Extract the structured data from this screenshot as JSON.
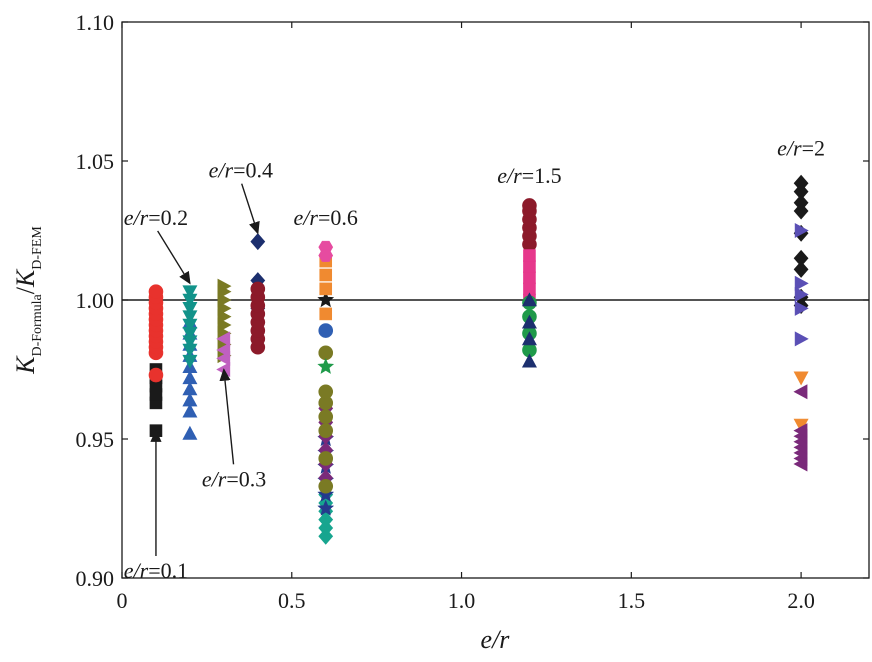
{
  "chart_data": {
    "type": "scatter",
    "xlabel_base": "e/r",
    "ylabel": {
      "num_italic": "K",
      "num_sub": "D-Formula",
      "slash": "/",
      "den_italic": "K",
      "den_sub": "D-FEM"
    },
    "xlim": [
      0,
      2.2
    ],
    "ylim": [
      0.9,
      1.1
    ],
    "x_ticks": [
      {
        "value": 0,
        "label": "0"
      },
      {
        "value": 0.5,
        "label": "0.5"
      },
      {
        "value": 1.0,
        "label": "1.0"
      },
      {
        "value": 1.5,
        "label": "1.5"
      },
      {
        "value": 2.0,
        "label": "2.0"
      }
    ],
    "y_ticks": [
      {
        "value": 0.9,
        "label": "0.90"
      },
      {
        "value": 0.95,
        "label": "0.95"
      },
      {
        "value": 1.0,
        "label": "1.00"
      },
      {
        "value": 1.05,
        "label": "1.05"
      },
      {
        "value": 1.1,
        "label": "1.10"
      }
    ],
    "reference_line": {
      "y": 1.0
    },
    "grid": false,
    "annotations": [
      {
        "text": "e/r=0.1",
        "italic": "e/r",
        "rest": "=0.1",
        "x": 0.1,
        "y": 0.9,
        "arrow_to": [
          0.1,
          0.953
        ]
      },
      {
        "text": "e/r=0.2",
        "italic": "e/r",
        "rest": "=0.2",
        "x": 0.1,
        "y": 1.027,
        "arrow_to": [
          0.2,
          1.006
        ]
      },
      {
        "text": "e/r=0.3",
        "italic": "e/r",
        "rest": "=0.3",
        "x": 0.33,
        "y": 0.933,
        "arrow_to": [
          0.3,
          0.975
        ]
      },
      {
        "text": "e/r=0.4",
        "italic": "e/r",
        "rest": "=0.4",
        "x": 0.35,
        "y": 1.044,
        "arrow_to": [
          0.4,
          1.024
        ]
      },
      {
        "text": "e/r=0.6",
        "italic": "e/r",
        "rest": "=0.6",
        "x": 0.6,
        "y": 1.027
      },
      {
        "text": "e/r=1.5",
        "italic": "e/r",
        "rest": "=1.5",
        "x": 1.2,
        "y": 1.042
      },
      {
        "text": "e/r=2",
        "italic": "e/r",
        "rest": "=2",
        "x": 2.0,
        "y": 1.052
      }
    ],
    "series": [
      {
        "marker": "square",
        "color": "#1a1a1a",
        "x": 0.1,
        "values": [
          0.953,
          0.963,
          0.966,
          0.969,
          0.972,
          0.975
        ]
      },
      {
        "marker": "circle",
        "color": "#e8322d",
        "x": 0.1,
        "values": [
          0.973,
          0.981,
          0.983,
          0.985,
          0.987,
          0.989,
          0.991,
          0.993,
          0.995,
          0.997,
          0.999,
          1.001,
          1.003
        ]
      },
      {
        "marker": "triangle-up",
        "color": "#2f5fb3",
        "x": 0.2,
        "values": [
          0.952,
          0.96,
          0.964,
          0.968,
          0.972,
          0.976,
          0.98,
          0.984,
          0.988,
          0.992
        ]
      },
      {
        "marker": "triangle-down",
        "color": "#12938a",
        "x": 0.2,
        "values": [
          0.978,
          0.982,
          0.985,
          0.988,
          0.991,
          0.994,
          0.997,
          1.0,
          1.003
        ]
      },
      {
        "marker": "triangle-right",
        "color": "#7a7a24",
        "x": 0.3,
        "values": [
          0.98,
          0.984,
          0.988,
          0.991,
          0.994,
          0.997,
          1.0,
          1.003,
          1.005
        ]
      },
      {
        "marker": "triangle-left",
        "color": "#c060c0",
        "x": 0.3,
        "values": [
          0.975,
          0.979,
          0.982,
          0.986
        ]
      },
      {
        "marker": "diamond",
        "color": "#1c2f6e",
        "x": 0.4,
        "values": [
          1.021,
          1.007,
          0.997,
          0.992
        ]
      },
      {
        "marker": "circle",
        "color": "#8c1a2a",
        "x": 0.4,
        "values": [
          0.983,
          0.986,
          0.989,
          0.992,
          0.995,
          0.998,
          1.001,
          1.004
        ]
      },
      {
        "marker": "diamond",
        "color": "#17a58f",
        "x": 0.6,
        "values": [
          0.915,
          0.918,
          0.921,
          0.924,
          0.927,
          0.93,
          0.933
        ]
      },
      {
        "marker": "star",
        "color": "#243a8c",
        "x": 0.6,
        "values": [
          0.925,
          0.93,
          0.935,
          0.94,
          0.945,
          0.95
        ]
      },
      {
        "marker": "diamond",
        "color": "#7a2a7a",
        "x": 0.6,
        "values": [
          0.936,
          0.941,
          0.946,
          0.951,
          0.956,
          0.961
        ]
      },
      {
        "marker": "circle",
        "color": "#7a7a24",
        "x": 0.6,
        "values": [
          0.933,
          0.943,
          0.953,
          0.958,
          0.963,
          0.967,
          0.981
        ]
      },
      {
        "marker": "star",
        "color": "#1f9a4a",
        "x": 0.6,
        "values": [
          0.976
        ]
      },
      {
        "marker": "circle",
        "color": "#2f5fb3",
        "x": 0.6,
        "values": [
          0.989
        ]
      },
      {
        "marker": "star",
        "color": "#1a1a1a",
        "x": 0.6,
        "values": [
          1.0
        ]
      },
      {
        "marker": "square",
        "color": "#f08a30",
        "x": 0.6,
        "values": [
          0.995,
          1.004,
          1.009,
          1.014
        ]
      },
      {
        "marker": "hexagon",
        "color": "#e64ba0",
        "x": 0.6,
        "values": [
          1.019,
          1.016
        ]
      },
      {
        "marker": "circle",
        "color": "#8c1a2a",
        "x": 1.2,
        "values": [
          1.02,
          1.023,
          1.026,
          1.029,
          1.032,
          1.034
        ]
      },
      {
        "marker": "square",
        "color": "#e6388c",
        "x": 1.2,
        "values": [
          1.0,
          1.004,
          1.008,
          1.012,
          1.016
        ]
      },
      {
        "marker": "circle",
        "color": "#1f9a4a",
        "x": 1.2,
        "values": [
          0.982,
          0.988,
          0.994,
          0.999
        ]
      },
      {
        "marker": "triangle-up",
        "color": "#1c2f6e",
        "x": 1.2,
        "values": [
          0.978,
          0.986,
          0.992,
          1.0
        ]
      },
      {
        "marker": "diamond",
        "color": "#1a1a1a",
        "x": 2.0,
        "values": [
          0.998,
          1.001,
          1.011,
          1.015,
          1.024,
          1.032,
          1.035,
          1.039,
          1.042
        ]
      },
      {
        "marker": "triangle-right",
        "color": "#5a4fb5",
        "x": 2.0,
        "values": [
          0.986,
          0.997,
          1.002,
          1.006,
          1.025
        ]
      },
      {
        "marker": "triangle-down",
        "color": "#f08a30",
        "x": 2.0,
        "values": [
          0.955,
          0.972
        ]
      },
      {
        "marker": "triangle-left",
        "color": "#7a2a7a",
        "x": 2.0,
        "values": [
          0.941,
          0.943,
          0.945,
          0.947,
          0.949,
          0.951,
          0.953,
          0.967
        ]
      }
    ]
  }
}
